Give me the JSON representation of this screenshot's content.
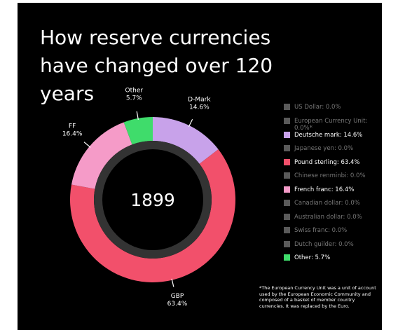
{
  "chart_data": {
    "type": "donut",
    "title": "How reserve currencies have changed over 120 years",
    "center_label": "1899",
    "categories": [
      "US Dollar: 0.0%",
      "European Currency Unit: 0.0%*",
      "Deutsche mark: 14.6%",
      "Japanese yen: 0.0%",
      "Pound sterling: 63.4%",
      "Chinese renminbi: 0.0%",
      "French franc: 16.4%",
      "Canadian dollar: 0.0%",
      "Australian dollar: 0.0%",
      "Swiss franc: 0.0%",
      "Dutch guilder: 0.0%",
      "Other: 5.7%"
    ],
    "values": [
      0.0,
      0.0,
      14.6,
      0.0,
      63.4,
      0.0,
      16.4,
      0.0,
      0.0,
      0.0,
      0.0,
      5.7
    ],
    "colors": [
      "#5a5a5a",
      "#5a5a5a",
      "#c8a2ea",
      "#5a5a5a",
      "#f2506b",
      "#5a5a5a",
      "#f59bc8",
      "#5a5a5a",
      "#5a5a5a",
      "#5a5a5a",
      "#5a5a5a",
      "#3fdc6b"
    ],
    "slice_names": [
      null,
      null,
      "D-Mark",
      null,
      "GBP",
      null,
      "FF",
      null,
      null,
      null,
      null,
      "Other"
    ],
    "value_labels": [
      null,
      null,
      "14.6%",
      null,
      "63.4%",
      null,
      "16.4%",
      null,
      null,
      null,
      null,
      "5.7%"
    ],
    "footnote": "*The European Currency Unit was a unit of account used by the European Economic Community and composed of a basket of member country currencies. It was replaced by the Euro."
  }
}
